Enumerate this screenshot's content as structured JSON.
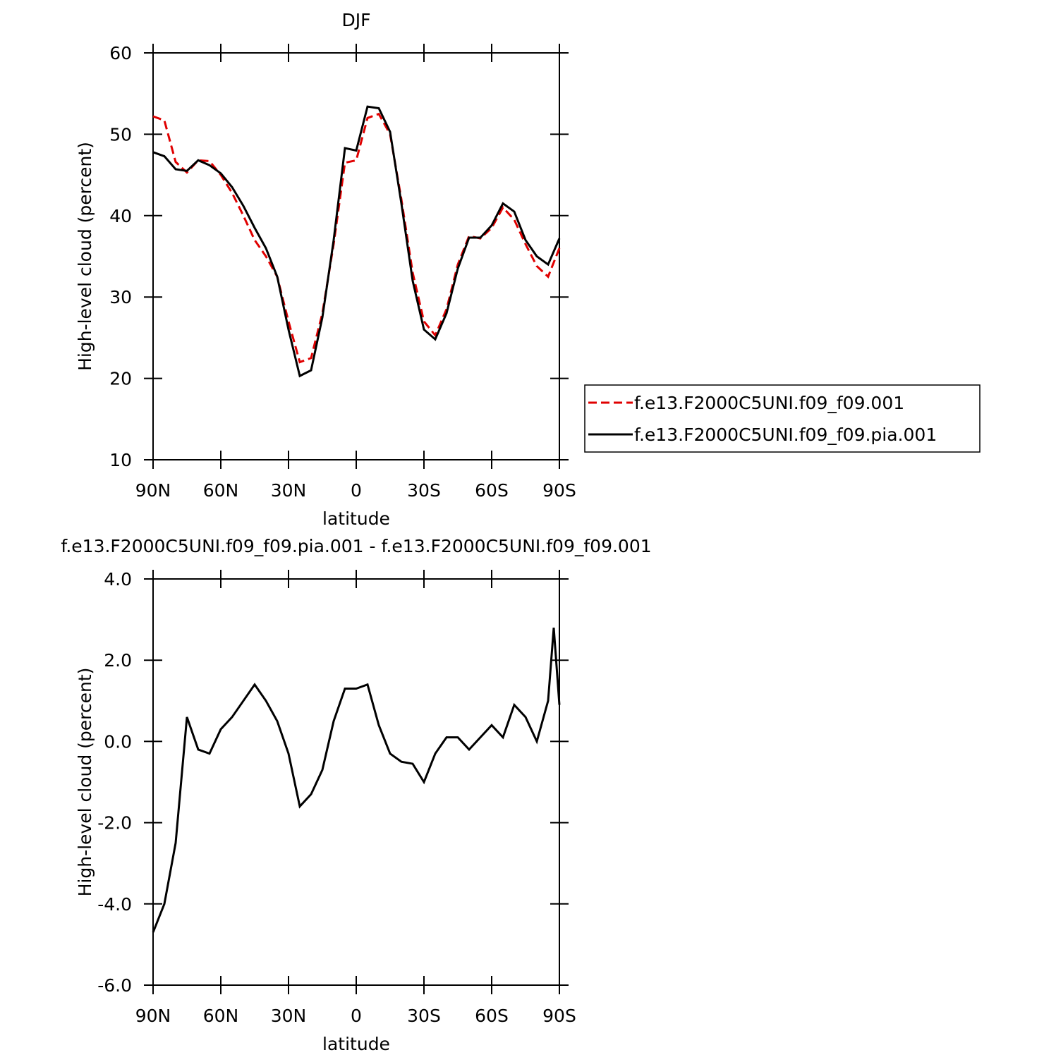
{
  "chart_data": [
    {
      "type": "line",
      "title": "DJF",
      "x_label": "latitude",
      "y_label": "High-level cloud (percent)",
      "x": [
        90,
        85,
        80,
        75,
        70,
        65,
        60,
        55,
        50,
        45,
        40,
        35,
        30,
        25,
        20,
        15,
        10,
        5,
        0,
        -5,
        -10,
        -15,
        -20,
        -25,
        -30,
        -35,
        -40,
        -45,
        -50,
        -55,
        -60,
        -65,
        -70,
        -75,
        -80,
        -85,
        -90
      ],
      "xlim": [
        90,
        -90
      ],
      "xticks": [
        {
          "value": 90,
          "label": "90N"
        },
        {
          "value": 60,
          "label": "60N"
        },
        {
          "value": 30,
          "label": "30N"
        },
        0,
        {
          "value": -30,
          "label": "30S"
        },
        {
          "value": -60,
          "label": "60S"
        },
        {
          "value": -90,
          "label": "90S"
        }
      ],
      "ylim": [
        10,
        60
      ],
      "yticks": [
        10,
        20,
        30,
        40,
        50,
        60
      ],
      "series": [
        {
          "name": "f.e13.F2000C5UNI.f09_f09.001",
          "color": "#e00000",
          "dashed": true,
          "values": [
            52.2,
            51.7,
            46.6,
            45.3,
            46.8,
            46.7,
            45,
            42.8,
            40,
            37,
            35,
            32.5,
            27,
            22,
            22.5,
            28,
            36.5,
            46.5,
            46.8,
            52,
            52.5,
            50,
            42,
            33,
            27,
            25.3,
            28.5,
            34,
            37.5,
            37.2,
            38.5,
            41,
            39.5,
            36.5,
            33.8,
            32.5,
            36
          ]
        },
        {
          "name": "f.e13.F2000C5UNI.f09_f09.pia.001",
          "color": "#000000",
          "dashed": false,
          "values": [
            47.8,
            47.3,
            45.7,
            45.5,
            46.8,
            46.2,
            45.2,
            43.5,
            41.2,
            38.5,
            36,
            32.5,
            26,
            20.3,
            21,
            27.5,
            37,
            48.3,
            48,
            53.4,
            53.2,
            50.3,
            41.5,
            32,
            26,
            24.8,
            28,
            33.5,
            37.3,
            37.3,
            38.8,
            41.5,
            40.5,
            37,
            35,
            34,
            37.2
          ]
        }
      ]
    },
    {
      "type": "line",
      "title": "f.e13.F2000C5UNI.f09_f09.pia.001 - f.e13.F2000C5UNI.f09_f09.001",
      "x_label": "latitude",
      "y_label": "High-level cloud (percent)",
      "x": [
        90,
        85,
        80,
        75,
        70,
        65,
        60,
        55,
        50,
        45,
        40,
        35,
        30,
        25,
        20,
        15,
        10,
        5,
        0,
        -5,
        -10,
        -15,
        -20,
        -25,
        -30,
        -35,
        -40,
        -45,
        -50,
        -55,
        -60,
        -65,
        -70,
        -75,
        -80,
        -85,
        -87.5,
        -90
      ],
      "xlim": [
        90,
        -90
      ],
      "xticks": [
        {
          "value": 90,
          "label": "90N"
        },
        {
          "value": 60,
          "label": "60N"
        },
        {
          "value": 30,
          "label": "30N"
        },
        0,
        {
          "value": -30,
          "label": "30S"
        },
        {
          "value": -60,
          "label": "60S"
        },
        {
          "value": -90,
          "label": "90S"
        }
      ],
      "ylim": [
        -6,
        4
      ],
      "yticks": [
        {
          "value": -6,
          "label": "-6.0"
        },
        {
          "value": -4,
          "label": "-4.0"
        },
        {
          "value": -2,
          "label": "-2.0"
        },
        {
          "value": 0,
          "label": "0.0"
        },
        {
          "value": 2,
          "label": "2.0"
        },
        {
          "value": 4,
          "label": "4.0"
        }
      ],
      "series": [
        {
          "color": "#000000",
          "dashed": false,
          "values": [
            -4.7,
            -4.0,
            -2.5,
            0.6,
            -0.2,
            -0.3,
            0.3,
            0.6,
            1.0,
            1.4,
            1.0,
            0.5,
            -0.3,
            -1.6,
            -1.3,
            -0.7,
            0.5,
            1.3,
            1.3,
            1.4,
            0.4,
            -0.3,
            -0.5,
            -0.55,
            -1.0,
            -0.3,
            0.1,
            0.1,
            -0.2,
            0.1,
            0.4,
            0.1,
            0.9,
            0.6,
            0.0,
            1.0,
            2.8,
            0.9
          ]
        }
      ]
    }
  ]
}
